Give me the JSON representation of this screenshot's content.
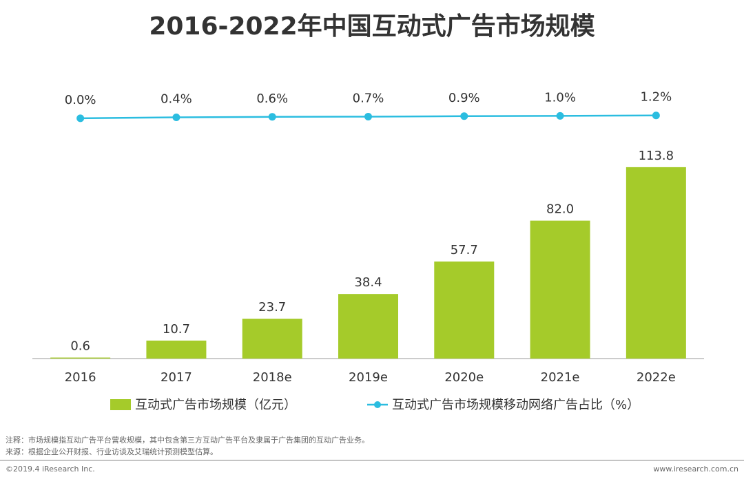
{
  "chart_data": {
    "type": "bar-line",
    "title": "2016-2022年中国互动式广告市场规模",
    "categories": [
      "2016",
      "2017",
      "2018e",
      "2019e",
      "2020e",
      "2021e",
      "2022e"
    ],
    "series": [
      {
        "name": "互动式广告市场规模（亿元）",
        "type": "bar",
        "color": "#a5cb2a",
        "values": [
          0.6,
          10.7,
          23.7,
          38.4,
          57.7,
          82.0,
          113.8
        ],
        "value_labels": [
          "0.6",
          "10.7",
          "23.7",
          "38.4",
          "57.7",
          "82.0",
          "113.8"
        ]
      },
      {
        "name": "互动式广告市场规模移动网络广告占比（%）",
        "type": "line",
        "axis": "y2",
        "color": "#2bbde0",
        "values": [
          0.0,
          0.4,
          0.6,
          0.7,
          0.9,
          1.0,
          1.2
        ],
        "value_labels": [
          "0.0%",
          "0.4%",
          "0.6%",
          "0.7%",
          "0.9%",
          "1.0%",
          "1.2%"
        ]
      }
    ],
    "ylim": [
      0,
      160
    ],
    "y2lim": [
      -100,
      12
    ],
    "notes": [
      "注释：市场规模指互动广告平台营收规模，其中包含第三方互动广告平台及隶属于广告集团的互动广告业务。",
      "来源：根据企业公开财报、行业访谈及艾瑞统计预测模型估算。"
    ],
    "copyright": "©2019.4 iResearch Inc.",
    "website": "www.iresearch.com.cn"
  }
}
